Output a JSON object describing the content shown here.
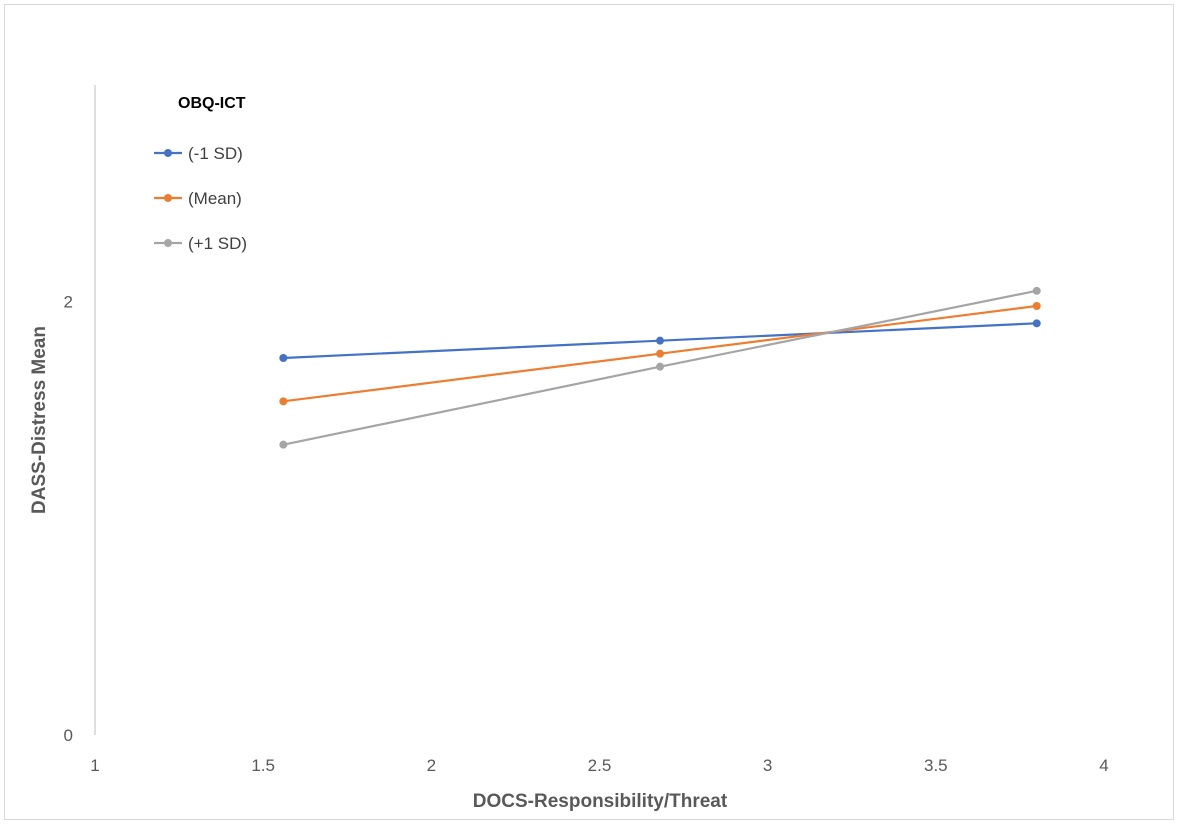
{
  "chart_data": {
    "type": "line",
    "title": "",
    "xlabel": "DOCS-Responsibility/Threat",
    "ylabel": "DASS-Distress Mean",
    "xlim": [
      1,
      4
    ],
    "ylim": [
      0,
      3
    ],
    "xticks": [
      1,
      1.5,
      2,
      2.5,
      3,
      3.5,
      4
    ],
    "xtick_labels": [
      "1",
      "1.5",
      "2",
      "2.5",
      "3",
      "3.5",
      "4"
    ],
    "yticks": [
      0,
      2
    ],
    "ytick_labels": [
      "0",
      "2"
    ],
    "grid": false,
    "legend": {
      "title": "OBQ-ICT",
      "position": "top-left"
    },
    "x": [
      1.56,
      2.68,
      3.8
    ],
    "series": [
      {
        "name": "(-1 SD)",
        "color": "#4472c4",
        "values": [
          1.74,
          1.82,
          1.9
        ]
      },
      {
        "name": "(Mean)",
        "color": "#ed7d31",
        "values": [
          1.54,
          1.76,
          1.98
        ]
      },
      {
        "name": "(+1 SD)",
        "color": "#a5a5a5",
        "values": [
          1.34,
          1.7,
          2.05
        ]
      }
    ]
  }
}
